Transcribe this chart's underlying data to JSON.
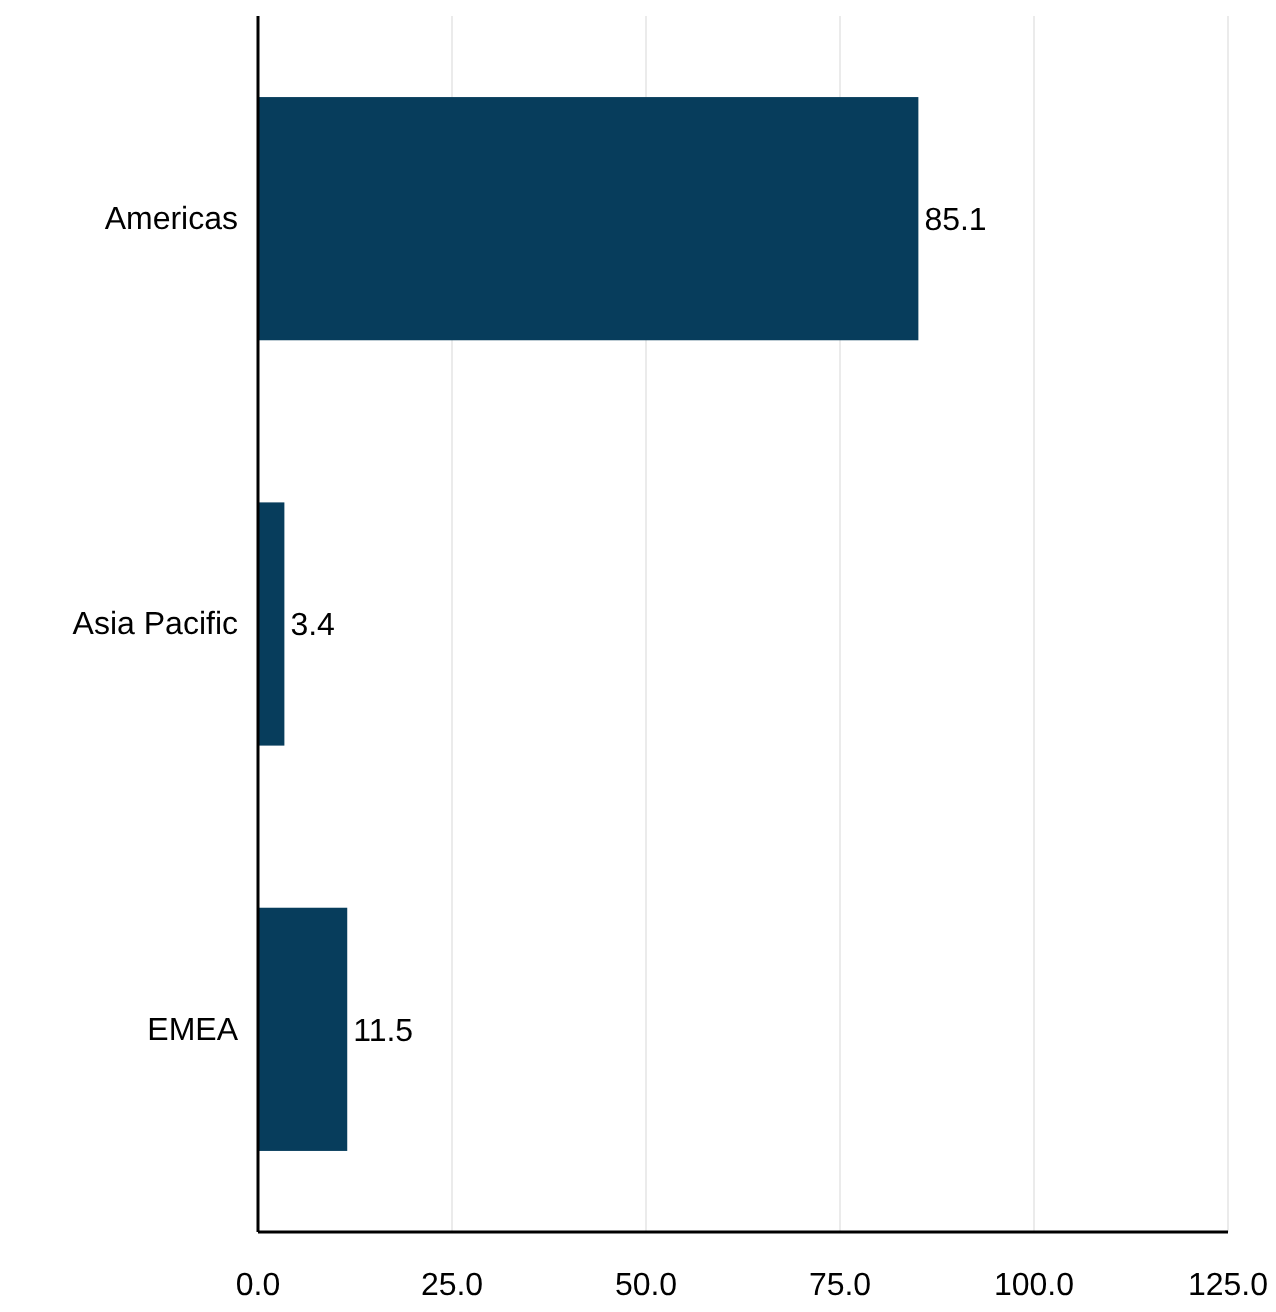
{
  "chart_data": {
    "type": "bar",
    "orientation": "horizontal",
    "categories": [
      "Americas",
      "Asia Pacific",
      "EMEA"
    ],
    "values": [
      85.1,
      3.4,
      11.5
    ],
    "color": "#073d5c",
    "xlim": [
      0,
      125
    ],
    "xticks": [
      {
        "value": 0,
        "label": "0.0"
      },
      {
        "value": 25,
        "label": "25.0"
      },
      {
        "value": 50,
        "label": "50.0"
      },
      {
        "value": 75,
        "label": "75.0"
      },
      {
        "value": 100,
        "label": "100.0"
      },
      {
        "value": 125,
        "label": "125.0"
      }
    ],
    "grid": "x",
    "data_labels": true
  }
}
